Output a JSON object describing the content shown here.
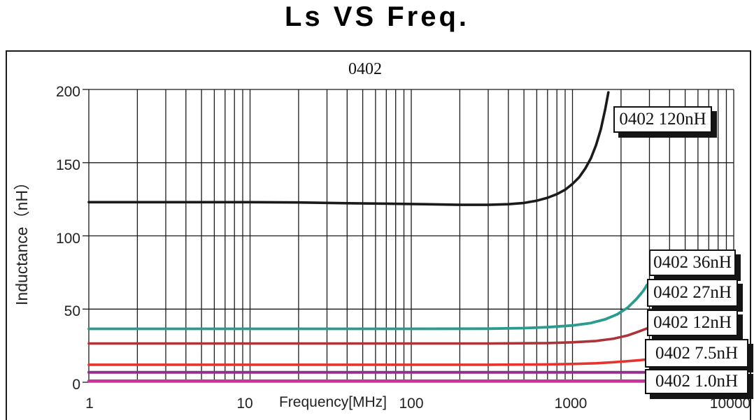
{
  "title": "Ls VS Freq.",
  "chart_data": {
    "type": "line",
    "title": "Ls VS Freq.",
    "subtitle": "0402",
    "xlabel": "Frequency[MHz]",
    "ylabel": "Inductance（nH）",
    "x_scale": "log",
    "xlim": [
      1,
      10000
    ],
    "ylim": [
      0,
      200
    ],
    "x_tick_labels": [
      "1",
      "10",
      "100",
      "1000",
      "10000"
    ],
    "y_tick_labels": [
      "200",
      "150",
      "100",
      "50",
      "0"
    ],
    "y_tick_values": [
      0,
      50,
      100,
      150,
      200
    ],
    "grid": "log minor + major, black",
    "legend_position": "boxed labels at right, white boxes with black drop shadow",
    "series": [
      {
        "name": "0402 120nH",
        "color": "#1a1a1a",
        "width": 3.6,
        "points": [
          [
            1,
            123
          ],
          [
            3,
            123
          ],
          [
            10,
            123
          ],
          [
            20,
            122.8
          ],
          [
            40,
            122.3
          ],
          [
            70,
            122
          ],
          [
            120,
            121.6
          ],
          [
            200,
            121.2
          ],
          [
            300,
            121.2
          ],
          [
            400,
            121.6
          ],
          [
            500,
            122.5
          ],
          [
            600,
            124
          ],
          [
            700,
            126
          ],
          [
            800,
            128.5
          ],
          [
            900,
            131.5
          ],
          [
            1000,
            135.5
          ],
          [
            1100,
            140
          ],
          [
            1200,
            146
          ],
          [
            1300,
            153
          ],
          [
            1400,
            162
          ],
          [
            1500,
            173
          ],
          [
            1600,
            187
          ],
          [
            1670,
            198
          ]
        ]
      },
      {
        "name": "0402 36nH",
        "color": "#2b9b8f",
        "width": 3.8,
        "points": [
          [
            1,
            36.5
          ],
          [
            100,
            36.5
          ],
          [
            300,
            36.6
          ],
          [
            500,
            37
          ],
          [
            700,
            37.6
          ],
          [
            1000,
            38.8
          ],
          [
            1300,
            40.5
          ],
          [
            1600,
            43
          ],
          [
            1900,
            46.5
          ],
          [
            2200,
            51
          ],
          [
            2500,
            57
          ],
          [
            2750,
            62.5
          ],
          [
            2900,
            66.5
          ]
        ]
      },
      {
        "name": "0402 27nH",
        "color": "#ad3338",
        "width": 3.6,
        "points": [
          [
            1,
            26.5
          ],
          [
            300,
            26.5
          ],
          [
            700,
            26.8
          ],
          [
            1000,
            27.3
          ],
          [
            1400,
            28.2
          ],
          [
            1800,
            29.8
          ],
          [
            2200,
            32
          ],
          [
            2600,
            34.8
          ],
          [
            2900,
            36.8
          ]
        ]
      },
      {
        "name": "0402 12nH",
        "color": "#e8322e",
        "width": 3.6,
        "points": [
          [
            1,
            12
          ],
          [
            300,
            12
          ],
          [
            700,
            12.2
          ],
          [
            1000,
            12.5
          ],
          [
            1400,
            13
          ],
          [
            1800,
            13.7
          ],
          [
            2200,
            14.4
          ],
          [
            2600,
            15.1
          ],
          [
            2900,
            15.6
          ]
        ]
      },
      {
        "name": "0402 7.5nH",
        "color": "#962b90",
        "width": 4,
        "points": [
          [
            1,
            6.8
          ],
          [
            2900,
            6.8
          ]
        ]
      },
      {
        "name": "0402 1.0nH",
        "color": "#c9339f",
        "width": 4.5,
        "points": [
          [
            1,
            0.8
          ],
          [
            2900,
            0.8
          ]
        ]
      }
    ]
  }
}
